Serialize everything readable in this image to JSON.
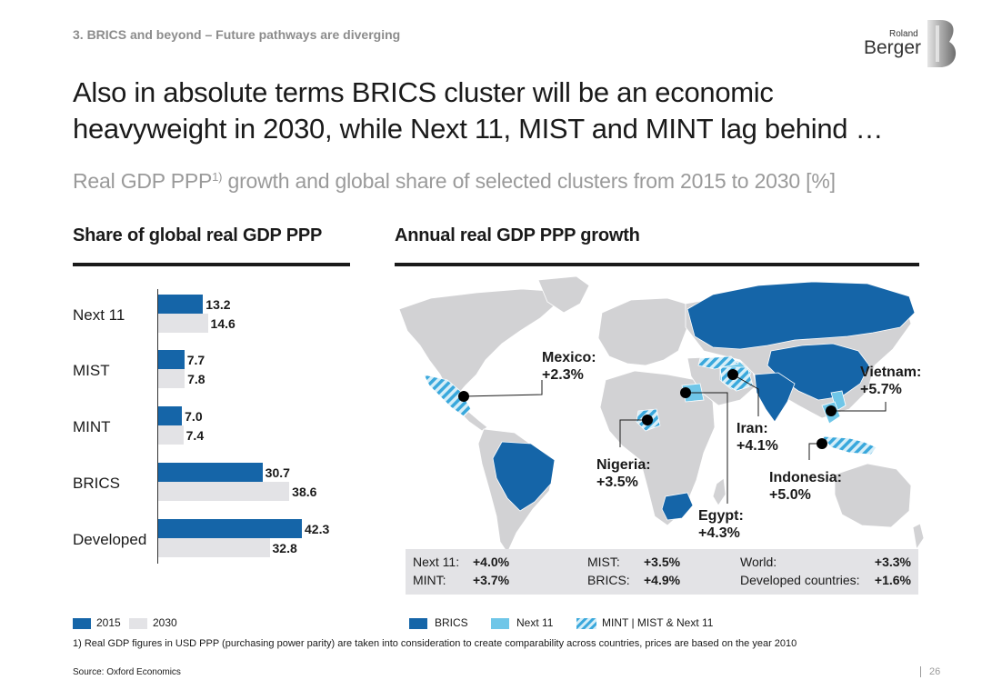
{
  "header": {
    "section": "3. BRICS and beyond – Future pathways are diverging",
    "logo_small": "Roland",
    "logo_big": "Berger",
    "title_line1": "Also in absolute terms BRICS cluster will be an economic",
    "title_line2": "heavyweight in 2030, while Next 11, MIST and MINT lag behind …",
    "subtitle_a": "Real GDP PPP",
    "subtitle_sup": "1)",
    "subtitle_b": " growth and global share of selected clusters from 2015 to 2030 [%]"
  },
  "chart_data": [
    {
      "type": "bar",
      "orientation": "horizontal",
      "title": "Share of global real GDP PPP",
      "categories": [
        "Next 11",
        "MIST",
        "MINT",
        "BRICS",
        "Developed"
      ],
      "series": [
        {
          "name": "2015",
          "values": [
            13.2,
            7.7,
            7.0,
            30.7,
            42.3
          ],
          "color": "#1565a8"
        },
        {
          "name": "2030",
          "values": [
            14.6,
            7.8,
            7.4,
            38.6,
            32.8
          ],
          "color": "#e3e3e6"
        }
      ],
      "xlim": [
        0,
        42.3
      ],
      "legend_placement": "bottom-left"
    },
    {
      "type": "map",
      "title": "Annual real GDP PPP growth",
      "annotations": [
        {
          "name": "Mexico:",
          "value": "+2.3%"
        },
        {
          "name": "Nigeria:",
          "value": "+3.5%"
        },
        {
          "name": "Egypt:",
          "value": "+4.3%"
        },
        {
          "name": "Iran:",
          "value": "+4.1%"
        },
        {
          "name": "Indonesia:",
          "value": "+5.0%"
        },
        {
          "name": "Vietnam:",
          "value": "+5.7%"
        }
      ],
      "summary": [
        {
          "label": "Next 11:",
          "value": "+4.0%"
        },
        {
          "label": "MINT:",
          "value": "+3.7%"
        },
        {
          "label": "MIST:",
          "value": "+3.5%"
        },
        {
          "label": "BRICS:",
          "value": "+4.9%"
        },
        {
          "label": "World:",
          "value": "+3.3%"
        },
        {
          "label": "Developed countries:",
          "value": "+1.6%"
        }
      ],
      "legend": [
        {
          "label": "BRICS",
          "color": "#1565a8"
        },
        {
          "label": "Next 11",
          "color": "#6fc6e8"
        },
        {
          "label": "MINT | MIST & Next 11",
          "color": "#3aa8dc",
          "pattern": "hatched"
        }
      ],
      "colors": {
        "land": "#d2d2d4",
        "brics": "#1565a8",
        "next11": "#6fc6e8",
        "hatch": "#3aa8dc"
      }
    }
  ],
  "footer": {
    "footnote": "1) Real GDP figures in USD PPP (purchasing power parity) are taken into consideration to create comparability across countries, prices are based on the year 2010",
    "source": "Source: Oxford Economics",
    "page": "26"
  }
}
